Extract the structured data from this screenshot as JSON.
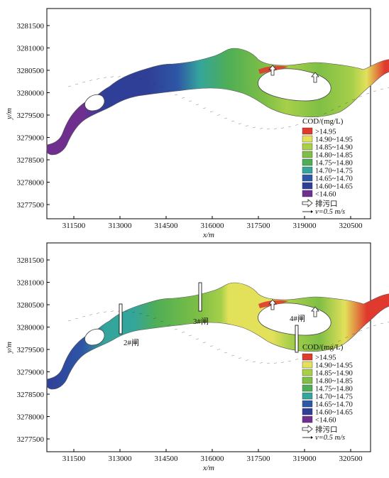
{
  "panels": [
    {
      "y_ticks": [
        "3281500",
        "3281000",
        "3280500",
        "3280000",
        "3279500",
        "3279000",
        "3278500",
        "3278000",
        "3277500"
      ],
      "x_ticks": [
        "311500",
        "313000",
        "314500",
        "316000",
        "317500",
        "319000",
        "320500"
      ],
      "y_label": "y/m",
      "x_label": "x/m",
      "gates": []
    },
    {
      "y_ticks": [
        "3281500",
        "3281000",
        "3280500",
        "3280000",
        "3279500",
        "3279000",
        "3278500",
        "3278000",
        "3277500"
      ],
      "x_ticks": [
        "311500",
        "313000",
        "314500",
        "316000",
        "317500",
        "319000",
        "320500"
      ],
      "y_label": "y/m",
      "x_label": "x/m",
      "gates": [
        "2#闸",
        "3#闸",
        "4#闸"
      ]
    }
  ],
  "legend": {
    "title": "COD/(mg/L)",
    "items": [
      {
        "label": ">14.95",
        "color": "#e03a2e"
      },
      {
        "label": "14.90~14.95",
        "color": "#e3e15a"
      },
      {
        "label": "14.85~14.90",
        "color": "#a7cf4a"
      },
      {
        "label": "14.80~14.85",
        "color": "#7fbf45"
      },
      {
        "label": "14.75~14.80",
        "color": "#4fae55"
      },
      {
        "label": "14.70~14.75",
        "color": "#34a59b"
      },
      {
        "label": "14.65~14.70",
        "color": "#2e57a6"
      },
      {
        "label": "14.60~14.65",
        "color": "#2f3f97"
      },
      {
        "label": "<14.60",
        "color": "#6f2f8f"
      }
    ],
    "outfall_label": "排污口",
    "velocity_label": "v=0.5 m/s"
  }
}
